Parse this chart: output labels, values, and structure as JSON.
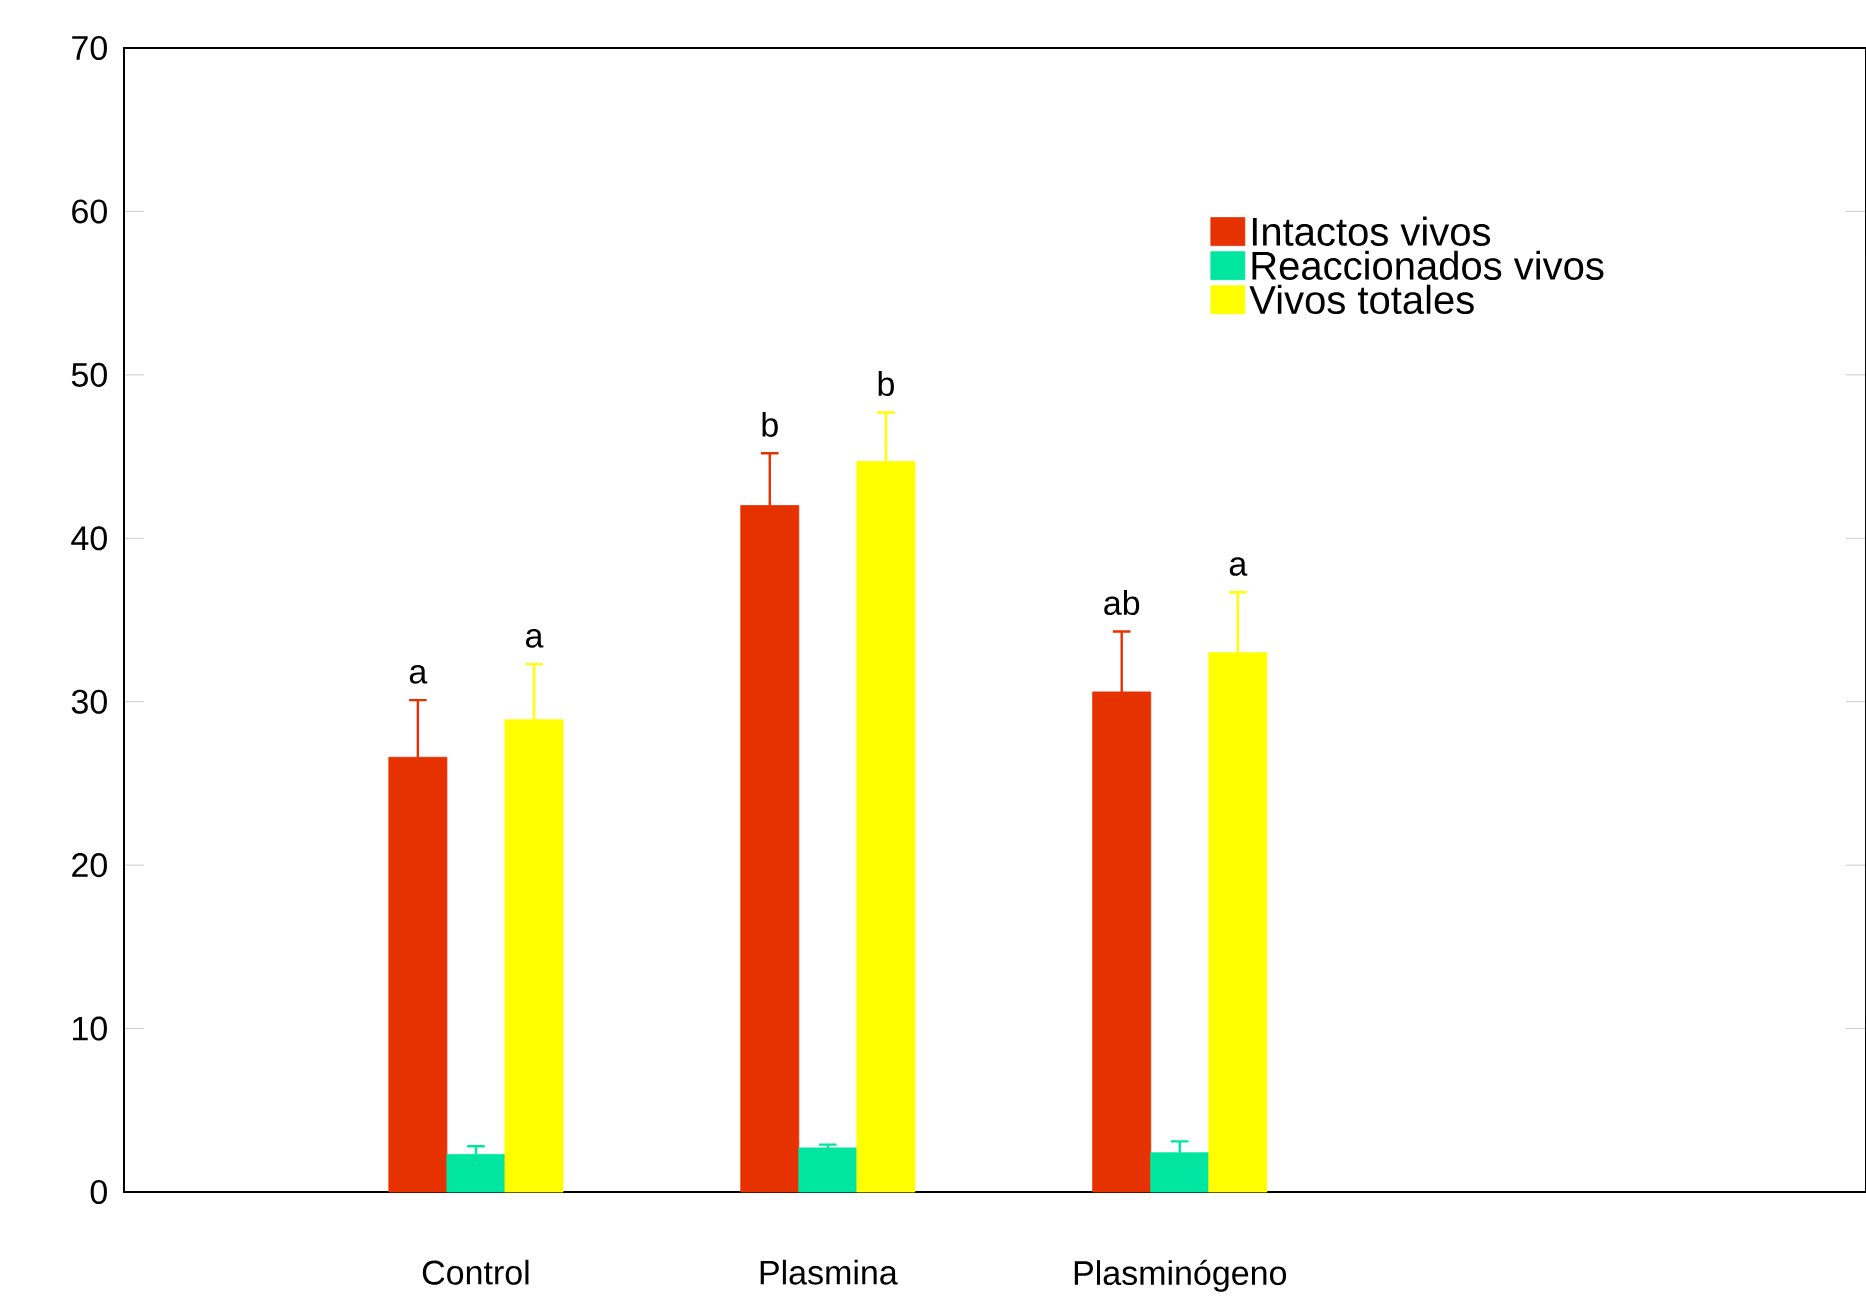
{
  "chart_data": {
    "type": "bar",
    "categories": [
      "Control",
      "Plasmina",
      "Plasminógeno"
    ],
    "series": [
      {
        "name": "Intactos vivos",
        "color": "#e63100",
        "values": [
          26.6,
          42.0,
          30.6
        ],
        "errors": [
          [
            26.6,
            30.1
          ],
          [
            42.0,
            45.2
          ],
          [
            30.6,
            34.3
          ]
        ]
      },
      {
        "name": "Reaccionados vivos",
        "color": "#00e6a0",
        "values": [
          2.3,
          2.7,
          2.4
        ],
        "errors": [
          [
            2.3,
            2.8
          ],
          [
            2.7,
            2.9
          ],
          [
            2.4,
            3.1
          ]
        ]
      },
      {
        "name": "Vivos totales",
        "color": "#ffff00",
        "values": [
          28.9,
          44.7,
          33.0
        ],
        "errors": [
          [
            28.9,
            32.3
          ],
          [
            44.7,
            47.7
          ],
          [
            33.0,
            36.7
          ]
        ]
      }
    ],
    "ylim": [
      0,
      70
    ],
    "yticks": [
      0,
      10,
      20,
      30,
      40,
      50,
      60,
      70
    ],
    "legend": "top right",
    "annotations": [
      "a",
      "a",
      "b",
      "b",
      "ab",
      "a"
    ]
  }
}
